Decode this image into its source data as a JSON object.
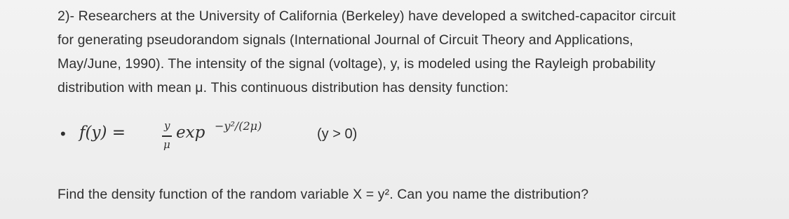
{
  "problem": {
    "lines": [
      "2)- Researchers at the University of California (Berkeley) have developed a switched-capacitor circuit",
      "for generating pseudorandom signals (International Journal of Circuit Theory and Applications,",
      "May/June, 1990). The intensity of the signal (voltage), y, is modeled using the Rayleigh probability",
      "distribution with mean μ. This continuous distribution has density function:"
    ]
  },
  "formula": {
    "lhs": "f(y) =",
    "numerator": "y",
    "denominator": "μ",
    "function": "exp",
    "exponent": "−y²/(2μ)",
    "condition": "(y > 0)"
  },
  "question": "Find the density function of the random variable X = y². Can you name the distribution?"
}
